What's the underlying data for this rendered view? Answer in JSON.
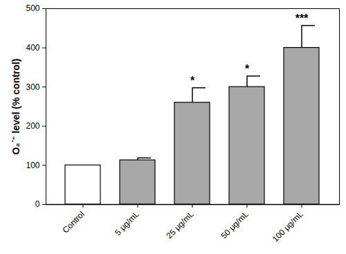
{
  "chart_data": {
    "type": "bar",
    "categories": [
      "Control",
      "5 μg/mL",
      "25 μg/mL",
      "50 μg/mL",
      "100 μg/mL"
    ],
    "values": [
      100,
      113,
      260,
      300,
      400
    ],
    "errors": [
      null,
      6,
      38,
      28,
      57
    ],
    "significance": [
      null,
      null,
      "*",
      "*",
      "***"
    ],
    "colors": [
      "#ffffff",
      "#a8a8a8",
      "#a8a8a8",
      "#a8a8a8",
      "#a8a8a8"
    ],
    "y_label": "O₂˙⁻ level (% control)",
    "ylim": [
      0,
      500
    ],
    "yticks": [
      0,
      100,
      200,
      300,
      400,
      500
    ],
    "grid": false
  }
}
